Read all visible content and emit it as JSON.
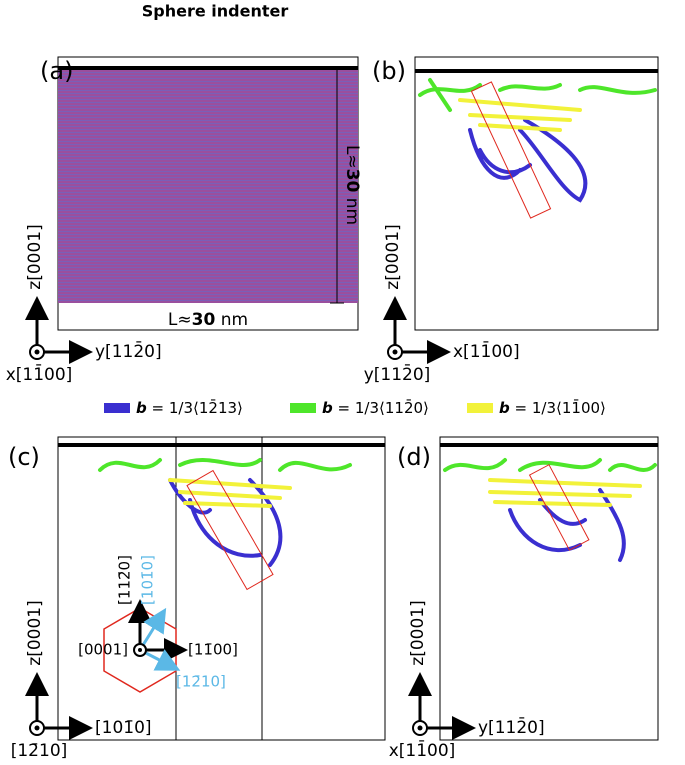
{
  "indenter_label": "Sphere indenter",
  "panels": [
    {
      "label": "(a)"
    },
    {
      "label": "(b)"
    },
    {
      "label": "(c)"
    },
    {
      "label": "(d)"
    }
  ],
  "dimensions": {
    "vertical": {
      "prefix": "L≈",
      "value": "30",
      "unit": "nm"
    },
    "horizontal": {
      "prefix": "L≈",
      "value": "30",
      "unit": "nm"
    }
  },
  "axes": {
    "a": {
      "up": "z[0001]",
      "right": "y[112̄0]",
      "out": "x[11̄00]"
    },
    "b": {
      "up": "z[0001]",
      "right": "x[11̄00]",
      "out": "y[112̄0]"
    },
    "c": {
      "up": "z[0001]",
      "right": "[101̄0]",
      "out": "[12̄10]"
    },
    "d": {
      "up": "z[0001]",
      "right": "y[112̄0]",
      "out": "x[11̄00]"
    }
  },
  "legend": [
    {
      "symbol": "b",
      "text": "= 1/3⟨12̄13⟩",
      "color": "#3a2fd0"
    },
    {
      "symbol": "b",
      "text": "= 1/3⟨112̄0⟩",
      "color": "#4ee62a"
    },
    {
      "symbol": "b",
      "text": "= 1/3⟨11̄00⟩",
      "color": "#f2f23a"
    }
  ],
  "inset": {
    "up_black": "[112̄0]",
    "up_blue": "[101̄0]",
    "center": "[0001]",
    "right": "[11̄00]",
    "down_blue": "[12̄10]"
  }
}
